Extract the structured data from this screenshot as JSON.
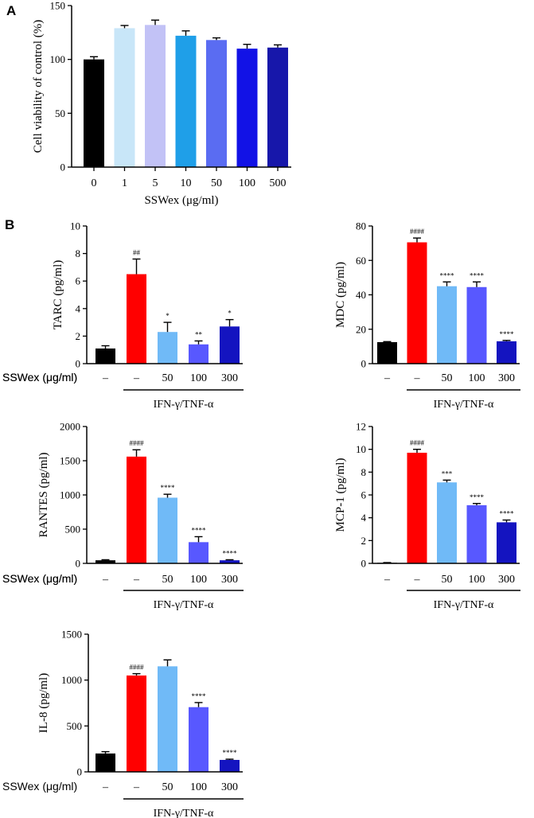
{
  "panel_labels": {
    "a": "A",
    "b": "B"
  },
  "chart_data": [
    {
      "id": "viability",
      "type": "bar",
      "ylabel": "Cell viability of control (%)",
      "xlabel": "SSWex (μg/ml)",
      "ylim": [
        0,
        150
      ],
      "yticks": [
        "0",
        "50",
        "100",
        "150"
      ],
      "categories": [
        "0",
        "1",
        "5",
        "10",
        "50",
        "100",
        "500"
      ],
      "values": [
        100,
        129,
        132,
        122,
        118,
        110,
        111
      ],
      "errors": [
        2.5,
        2.5,
        4.5,
        4.5,
        2,
        4,
        2.5
      ],
      "colors": [
        "#000000",
        "#c8e6f8",
        "#c2c2f6",
        "#1f9fe8",
        "#5a6cf2",
        "#1212e6",
        "#1717aa"
      ],
      "annotations": [
        "",
        "",
        "",
        "",
        "",
        "",
        ""
      ]
    },
    {
      "id": "tarc",
      "type": "bar",
      "ylabel": "TARC (pg/ml)",
      "ylim": [
        0,
        10
      ],
      "yticks": [
        "0",
        "2",
        "4",
        "6",
        "8",
        "10"
      ],
      "categories": [
        "–",
        "–",
        "50",
        "100",
        "300"
      ],
      "values": [
        1.1,
        6.5,
        2.3,
        1.4,
        2.7
      ],
      "errors": [
        0.2,
        1.1,
        0.7,
        0.25,
        0.5
      ],
      "colors": [
        "#000000",
        "#ff0000",
        "#70baf7",
        "#5858ff",
        "#1414c0"
      ],
      "annotations": [
        "",
        "##",
        "*",
        "**",
        "*"
      ],
      "row_label": "SSWex (μg/ml)",
      "group_label": "IFN-γ/TNF-α"
    },
    {
      "id": "mdc",
      "type": "bar",
      "ylabel": "MDC (pg/ml)",
      "ylim": [
        0,
        80
      ],
      "yticks": [
        "0",
        "20",
        "40",
        "60",
        "80"
      ],
      "categories": [
        "–",
        "–",
        "50",
        "100",
        "300"
      ],
      "values": [
        12.5,
        70.5,
        45,
        44.5,
        13
      ],
      "errors": [
        0.3,
        2.5,
        2.5,
        3,
        0.5
      ],
      "colors": [
        "#000000",
        "#ff0000",
        "#70baf7",
        "#5858ff",
        "#1414c0"
      ],
      "annotations": [
        "",
        "####",
        "****",
        "****",
        "****"
      ],
      "row_label": "SSWex (μg/ml)",
      "group_label": "IFN-γ/TNF-α"
    },
    {
      "id": "rantes",
      "type": "bar",
      "ylabel": "RANTES (pg/ml)",
      "ylim": [
        0,
        2000
      ],
      "yticks": [
        "0",
        "500",
        "1000",
        "1500",
        "2000"
      ],
      "categories": [
        "–",
        "–",
        "50",
        "100",
        "300"
      ],
      "values": [
        45,
        1560,
        960,
        310,
        45
      ],
      "errors": [
        8,
        100,
        50,
        80,
        8
      ],
      "colors": [
        "#000000",
        "#ff0000",
        "#70baf7",
        "#5858ff",
        "#1414c0"
      ],
      "annotations": [
        "",
        "####",
        "****",
        "****",
        "****"
      ],
      "row_label": "SSWex (μg/ml)",
      "group_label": "IFN-γ/TNF-α"
    },
    {
      "id": "mcp1",
      "type": "bar",
      "ylabel": "MCP-1 (pg/ml)",
      "ylim": [
        0,
        12
      ],
      "yticks": [
        "0",
        "2",
        "4",
        "6",
        "8",
        "10",
        "12"
      ],
      "categories": [
        "–",
        "–",
        "50",
        "100",
        "300"
      ],
      "values": [
        0.05,
        9.7,
        7.1,
        5.1,
        3.6
      ],
      "errors": [
        0.02,
        0.3,
        0.2,
        0.15,
        0.2
      ],
      "colors": [
        "#000000",
        "#ff0000",
        "#70baf7",
        "#5858ff",
        "#1414c0"
      ],
      "annotations": [
        "",
        "####",
        "***",
        "****",
        "****"
      ],
      "row_label": "SSWex (μg/ml)",
      "group_label": "IFN-γ/TNF-α"
    },
    {
      "id": "il8",
      "type": "bar",
      "ylabel": "IL-8 (pg/ml)",
      "ylim": [
        0,
        1500
      ],
      "yticks": [
        "0",
        "500",
        "1000",
        "1500"
      ],
      "categories": [
        "–",
        "–",
        "50",
        "100",
        "300"
      ],
      "values": [
        200,
        1050,
        1150,
        705,
        130
      ],
      "errors": [
        20,
        20,
        70,
        50,
        8
      ],
      "colors": [
        "#000000",
        "#ff0000",
        "#70baf7",
        "#5858ff",
        "#1414c0"
      ],
      "annotations": [
        "",
        "####",
        "",
        "****",
        "****"
      ],
      "row_label": "SSWex (μg/ml)",
      "group_label": "IFN-γ/TNF-α"
    }
  ]
}
